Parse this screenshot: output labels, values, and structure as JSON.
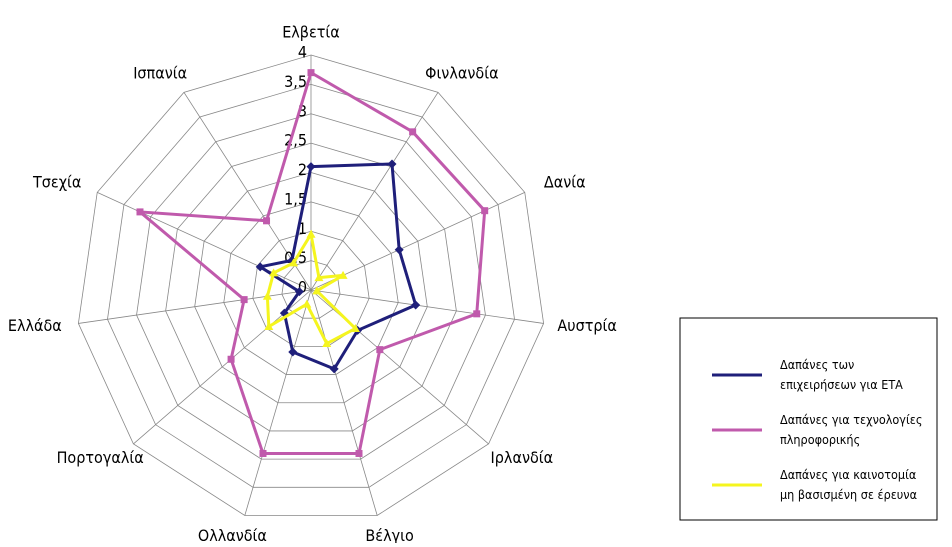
{
  "chart_data": {
    "type": "radar",
    "categories": [
      "Ελβετία",
      "Φινλανδία",
      "Δανία",
      "Αυστρία",
      "Ιρλανδία",
      "Βέλγιο",
      "Ολλανδία",
      "Πορτογαλία",
      "Ελλάδα",
      "Τσεχία",
      "Ισπανία"
    ],
    "series": [
      {
        "name": "Δαπάνες των επιχειρήσεων για ΕΤΑ",
        "color": "#1f1f7a",
        "marker": "diamond",
        "values": [
          2.1,
          2.55,
          1.65,
          1.8,
          1.05,
          1.4,
          1.1,
          0.6,
          0.2,
          0.95,
          0.6
        ]
      },
      {
        "name": "Δαπάνες για τεχνολογίες πληροφορικής",
        "color": "#c05aac",
        "marker": "square",
        "values": [
          3.7,
          3.2,
          3.25,
          2.85,
          1.55,
          2.9,
          2.9,
          1.8,
          1.15,
          3.2,
          1.4
        ]
      },
      {
        "name": "Δαπάνες για καινοτομία μη βασισμένη σε έρευνα",
        "color": "#f5f51e",
        "marker": "triangle",
        "values": [
          0.95,
          0.25,
          0.6,
          0.1,
          1.0,
          0.95,
          0.25,
          0.95,
          0.75,
          0.7,
          0.55
        ]
      }
    ],
    "ylim": [
      0,
      4
    ],
    "yticks": [
      0,
      {
        "value": 0.5,
        "label": "0,5"
      },
      1,
      {
        "value": 1.5,
        "label": "1,5"
      },
      2,
      {
        "value": 2.5,
        "label": "2,5"
      },
      3,
      {
        "value": 3.5,
        "label": "3,5"
      },
      4
    ],
    "grid": true,
    "legend": "right"
  }
}
